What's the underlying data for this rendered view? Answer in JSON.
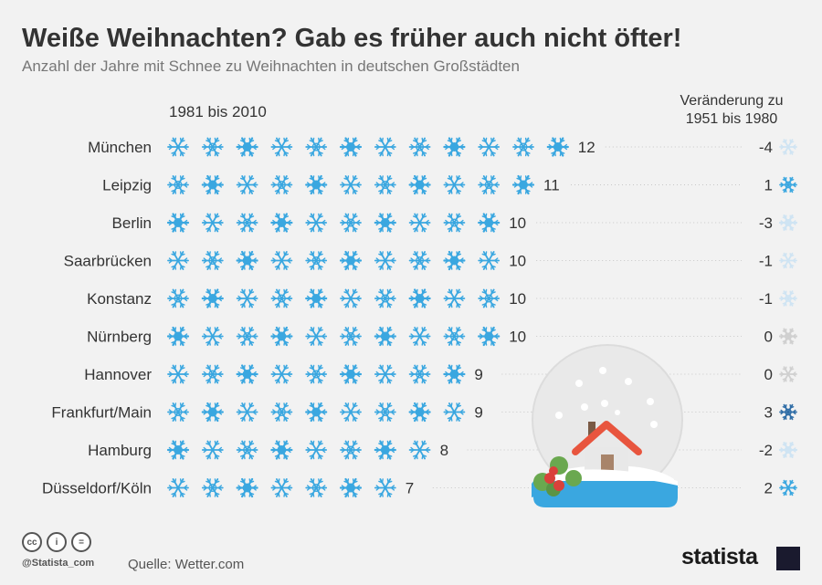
{
  "title": "Weiße Weihnachten? Gab es früher auch nicht öfter!",
  "subtitle": "Anzahl der Jahre mit Schnee zu Weihnachten in deutschen Großstädten",
  "period_label": "1981 bis 2010",
  "change_label": "Veränderung zu 1951 bis 1980",
  "colors": {
    "snow": "#3aa7e0",
    "snow_light": "#cfe4f3",
    "snow_grey": "#d0d0d0",
    "snow_dark": "#2f6da6",
    "text": "#333333",
    "globe_base": "#3aa7e0",
    "roof": "#e8553e"
  },
  "chart_data": {
    "type": "pictogram",
    "title": "Weiße Weihnachten? Gab es früher auch nicht öfter!",
    "subtitle": "Anzahl der Jahre mit Schnee zu Weihnachten in deutschen Großstädten",
    "series": [
      {
        "name": "1981 bis 2010",
        "values": [
          12,
          11,
          10,
          10,
          10,
          10,
          9,
          9,
          8,
          7
        ]
      },
      {
        "name": "Veränderung zu 1951 bis 1980",
        "values": [
          -4,
          1,
          -3,
          -1,
          -1,
          0,
          0,
          3,
          -2,
          2
        ]
      }
    ],
    "categories": [
      "München",
      "Leipzig",
      "Berlin",
      "Saarbrücken",
      "Konstanz",
      "Nürnberg",
      "Hannover",
      "Frankfurt/Main",
      "Hamburg",
      "Düsseldorf/Köln"
    ],
    "value_labels": [
      "12",
      "11",
      "10",
      "10",
      "10",
      "10",
      "9",
      "9",
      "8",
      "7"
    ],
    "change_labels": [
      "-4",
      "1",
      "-3",
      "-1",
      "-1",
      "0",
      "0",
      "3",
      "-2",
      "2"
    ]
  },
  "footer": {
    "icons": [
      "cc-icon",
      "person-icon",
      "equals-icon"
    ],
    "icon_glyphs": [
      "cc",
      "i",
      "="
    ],
    "handle": "@Statista_com",
    "source": "Quelle: Wetter.com",
    "brand": "statista"
  }
}
